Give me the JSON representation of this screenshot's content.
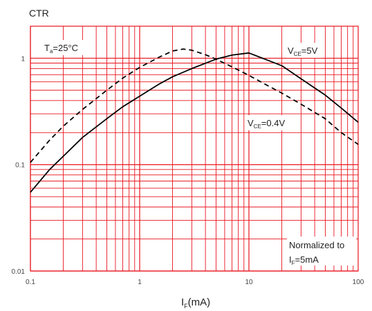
{
  "chart_data": {
    "type": "line",
    "ylabel": "CTR",
    "xlabel_main": "I",
    "xlabel_sub": "F",
    "xlabel_tail": "(mA)",
    "xscale": "log",
    "yscale": "log",
    "xlim": [
      0.1,
      100
    ],
    "ylim": [
      0.01,
      2
    ],
    "grid": true,
    "grid_color": "#e8141e",
    "x_ticks": [
      "0.1",
      "1",
      "10",
      "100"
    ],
    "y_ticks": [
      "0.01",
      "0.1",
      "1"
    ],
    "annotations": {
      "temp": {
        "main": "T",
        "sub": "a",
        "tail": "=25°C"
      },
      "vce5": {
        "main": "V",
        "sub": "CE",
        "tail": "=5V"
      },
      "vce04": {
        "main": "V",
        "sub": "CE",
        "tail": "=0.4V"
      },
      "norm_line1": "Normalized to",
      "norm_line2": {
        "main": "I",
        "sub": "F",
        "tail": "=5mA"
      }
    },
    "series": [
      {
        "name": "VCE=5V",
        "style": "solid",
        "color": "#000000",
        "x": [
          0.1,
          0.15,
          0.2,
          0.3,
          0.5,
          0.7,
          1,
          1.5,
          2,
          3,
          5,
          7,
          10,
          20,
          30,
          50,
          70,
          100
        ],
        "y": [
          0.055,
          0.09,
          0.12,
          0.18,
          0.27,
          0.35,
          0.44,
          0.57,
          0.67,
          0.8,
          0.98,
          1.07,
          1.12,
          0.85,
          0.64,
          0.45,
          0.34,
          0.25
        ]
      },
      {
        "name": "VCE=0.4V",
        "style": "dashed",
        "color": "#000000",
        "x": [
          0.1,
          0.15,
          0.2,
          0.3,
          0.5,
          0.7,
          1,
          1.5,
          2,
          2.5,
          3,
          4,
          5,
          7,
          10,
          15,
          20,
          30,
          50,
          70,
          100
        ],
        "y": [
          0.105,
          0.17,
          0.23,
          0.33,
          0.5,
          0.65,
          0.82,
          1.02,
          1.17,
          1.22,
          1.19,
          1.08,
          0.98,
          0.83,
          0.69,
          0.55,
          0.47,
          0.37,
          0.27,
          0.2,
          0.155
        ]
      }
    ]
  }
}
